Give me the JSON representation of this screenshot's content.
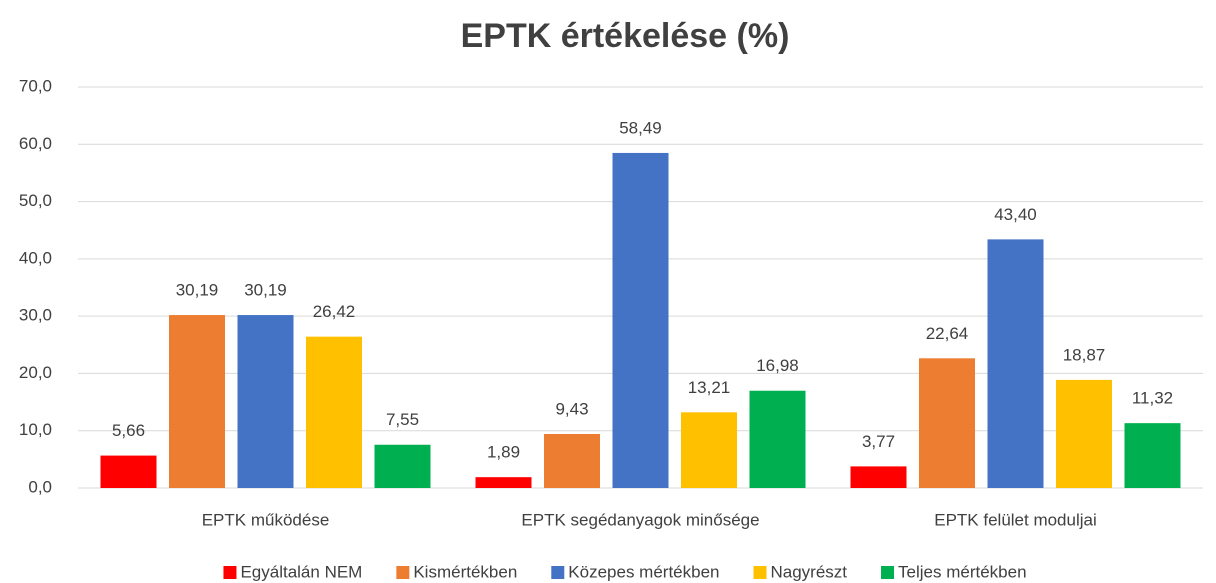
{
  "chart_data": {
    "type": "bar",
    "title": "EPTK értékelése (%)",
    "categories": [
      "EPTK működése",
      "EPTK segédanyagok minősége",
      "EPTK felület moduljai"
    ],
    "series": [
      {
        "name": "Egyáltalán NEM",
        "color": "#ff0000",
        "values": [
          5.66,
          1.89,
          3.77
        ],
        "value_labels": [
          "5,66",
          "1,89",
          "3,77"
        ]
      },
      {
        "name": "Kismértékben",
        "color": "#ed7d31",
        "values": [
          30.19,
          9.43,
          22.64
        ],
        "value_labels": [
          "30,19",
          "9,43",
          "22,64"
        ]
      },
      {
        "name": "Közepes mértékben",
        "color": "#4472c4",
        "values": [
          30.19,
          58.49,
          43.4
        ],
        "value_labels": [
          "30,19",
          "58,49",
          "43,40"
        ]
      },
      {
        "name": "Nagyrészt",
        "color": "#ffc000",
        "values": [
          26.42,
          13.21,
          18.87
        ],
        "value_labels": [
          "26,42",
          "13,21",
          "18,87"
        ]
      },
      {
        "name": "Teljes mértékben",
        "color": "#00b050",
        "values": [
          7.55,
          16.98,
          11.32
        ],
        "value_labels": [
          "7,55",
          "16,98",
          "11,32"
        ]
      }
    ],
    "ylim": [
      0,
      70
    ],
    "yticks": [
      {
        "value": 0,
        "label": "0,0"
      },
      {
        "value": 10,
        "label": "10,0"
      },
      {
        "value": 20,
        "label": "20,0"
      },
      {
        "value": 30,
        "label": "30,0"
      },
      {
        "value": 40,
        "label": "40,0"
      },
      {
        "value": 50,
        "label": "50,0"
      },
      {
        "value": 60,
        "label": "60,0"
      },
      {
        "value": 70,
        "label": "70,0"
      }
    ],
    "grid": true,
    "legend": "bottom"
  }
}
